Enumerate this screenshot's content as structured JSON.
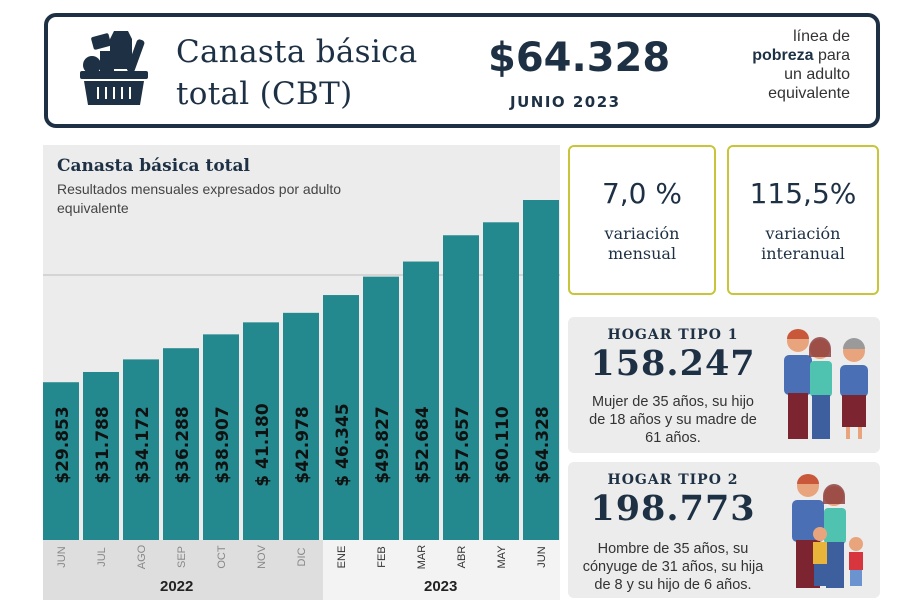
{
  "header": {
    "title_line1": "Canasta básica",
    "title_line2": "total (CBT)",
    "price": "$64.328",
    "date": "JUNIO 2023",
    "note_line1": "línea de",
    "note_bold": "pobreza",
    "note_line2_rest": " para",
    "note_line3": "un adulto",
    "note_line4": "equivalente",
    "icon": "shopping-basket-icon"
  },
  "chart_data": {
    "type": "bar",
    "title": "Canasta básica total",
    "subtitle": "Resultados mensuales expresados por adulto equivalente",
    "categories": [
      "JUN",
      "JUL",
      "AGO",
      "SEP",
      "OCT",
      "NOV",
      "DIC",
      "ENE",
      "FEB",
      "MAR",
      "ABR",
      "MAY",
      "JUN"
    ],
    "values": [
      29853,
      31788,
      34172,
      36288,
      38907,
      41180,
      42978,
      46345,
      49827,
      52684,
      57657,
      60110,
      64328
    ],
    "data_labels": [
      "$29.853",
      "$31.788",
      "$34.172",
      "$36.288",
      "$38.907",
      "$ 41.180",
      "$42.978",
      "$ 46.345",
      "$49.827",
      "$52.684",
      "$57.657",
      "$60.110",
      "$64.328"
    ],
    "groups": [
      {
        "label": "2022",
        "count": 7
      },
      {
        "label": "2023",
        "count": 6
      }
    ],
    "ylim": [
      0,
      64328
    ],
    "bar_color": "#23898e",
    "grid": false
  },
  "stats": [
    {
      "value": "7,0 %",
      "label_line1": "variación",
      "label_line2": "mensual"
    },
    {
      "value": "115,5%",
      "label_line1": "variación",
      "label_line2": "interanual"
    }
  ],
  "hogares": [
    {
      "title": "HOGAR TIPO 1",
      "value": "158.247",
      "desc1": "Mujer de 35 años, su hijo",
      "desc2": "de 18 años y su madre de",
      "desc3": "61 años."
    },
    {
      "title": "HOGAR TIPO 2",
      "value": "198.773",
      "desc1": "Hombre de 35 años, su",
      "desc2": "cónyuge de 31 años, su hija",
      "desc3": "de 8 y su hijo de 6 años."
    }
  ]
}
